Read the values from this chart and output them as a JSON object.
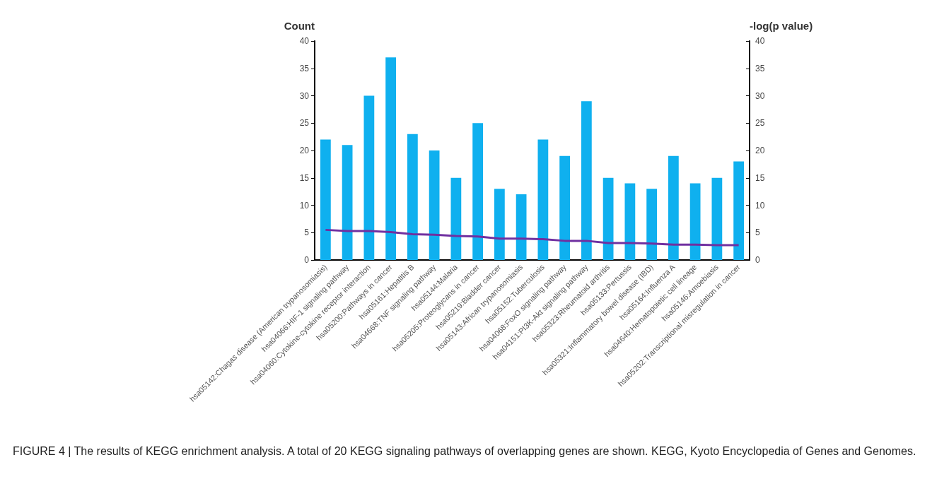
{
  "chart_data": {
    "type": "bar",
    "categories": [
      "hsa05142:Chagas disease (American trypanosomiasis)",
      "hsa04066:HIF-1 signaling pathway",
      "hsa04060:Cytokine-cytokine receptor interaction",
      "hsa05200:Pathways in cancer",
      "hsa05161:Hepatitis B",
      "hsa04668:TNF signaling pathway",
      "hsa05144:Malaria",
      "hsa05205:Proteoglycans in cancer",
      "hsa05219:Bladder cancer",
      "hsa05143:African trypanosomiasis",
      "hsa05152:Tuberculosis",
      "hsa04068:FoxO signaling pathway",
      "hsa04151:PI3K-Akt signaling pathway",
      "hsa05323:Rheumatoid arthritis",
      "hsa05133:Pertussis",
      "hsa05321:Inflammatory bowel disease (IBD)",
      "hsa05164:Influenza A",
      "hsa04640:Hematopoietic cell lineage",
      "hsa05146:Amoebiasis",
      "hsa05202:Transcriptional misregulation in cancer"
    ],
    "series": [
      {
        "color": "#0fb0ef",
        "values": [
          22,
          21,
          30,
          37,
          23,
          20,
          15,
          25,
          13,
          12,
          22,
          19,
          29,
          15,
          14,
          13,
          19,
          14,
          15,
          18
        ]
      },
      {
        "type": "line",
        "color": "#7030a0",
        "values": [
          5.5,
          5.3,
          5.3,
          5.1,
          4.7,
          4.6,
          4.4,
          4.3,
          3.9,
          3.9,
          3.8,
          3.5,
          3.5,
          3.1,
          3.1,
          3.0,
          2.8,
          2.8,
          2.7,
          2.7
        ]
      }
    ],
    "ylabel": "Count",
    "y2label": "-log(p value)",
    "ylim": [
      0,
      40
    ],
    "yticks": [
      0,
      5,
      10,
      15,
      20,
      25,
      30,
      35,
      40
    ],
    "y2lim": [
      0,
      40
    ],
    "y2ticks": [
      0,
      5,
      10,
      15,
      20,
      25,
      30,
      35,
      40
    ],
    "grid": false,
    "marker": "none",
    "line_style": "solid",
    "annotations": [
      "FIGURE 4 | The results of KEGG enrichment analysis. A total of 20 KEGG signaling pathways of overlapping genes are shown. KEGG, Kyoto Encyclopedia of Genes and Genomes."
    ]
  }
}
